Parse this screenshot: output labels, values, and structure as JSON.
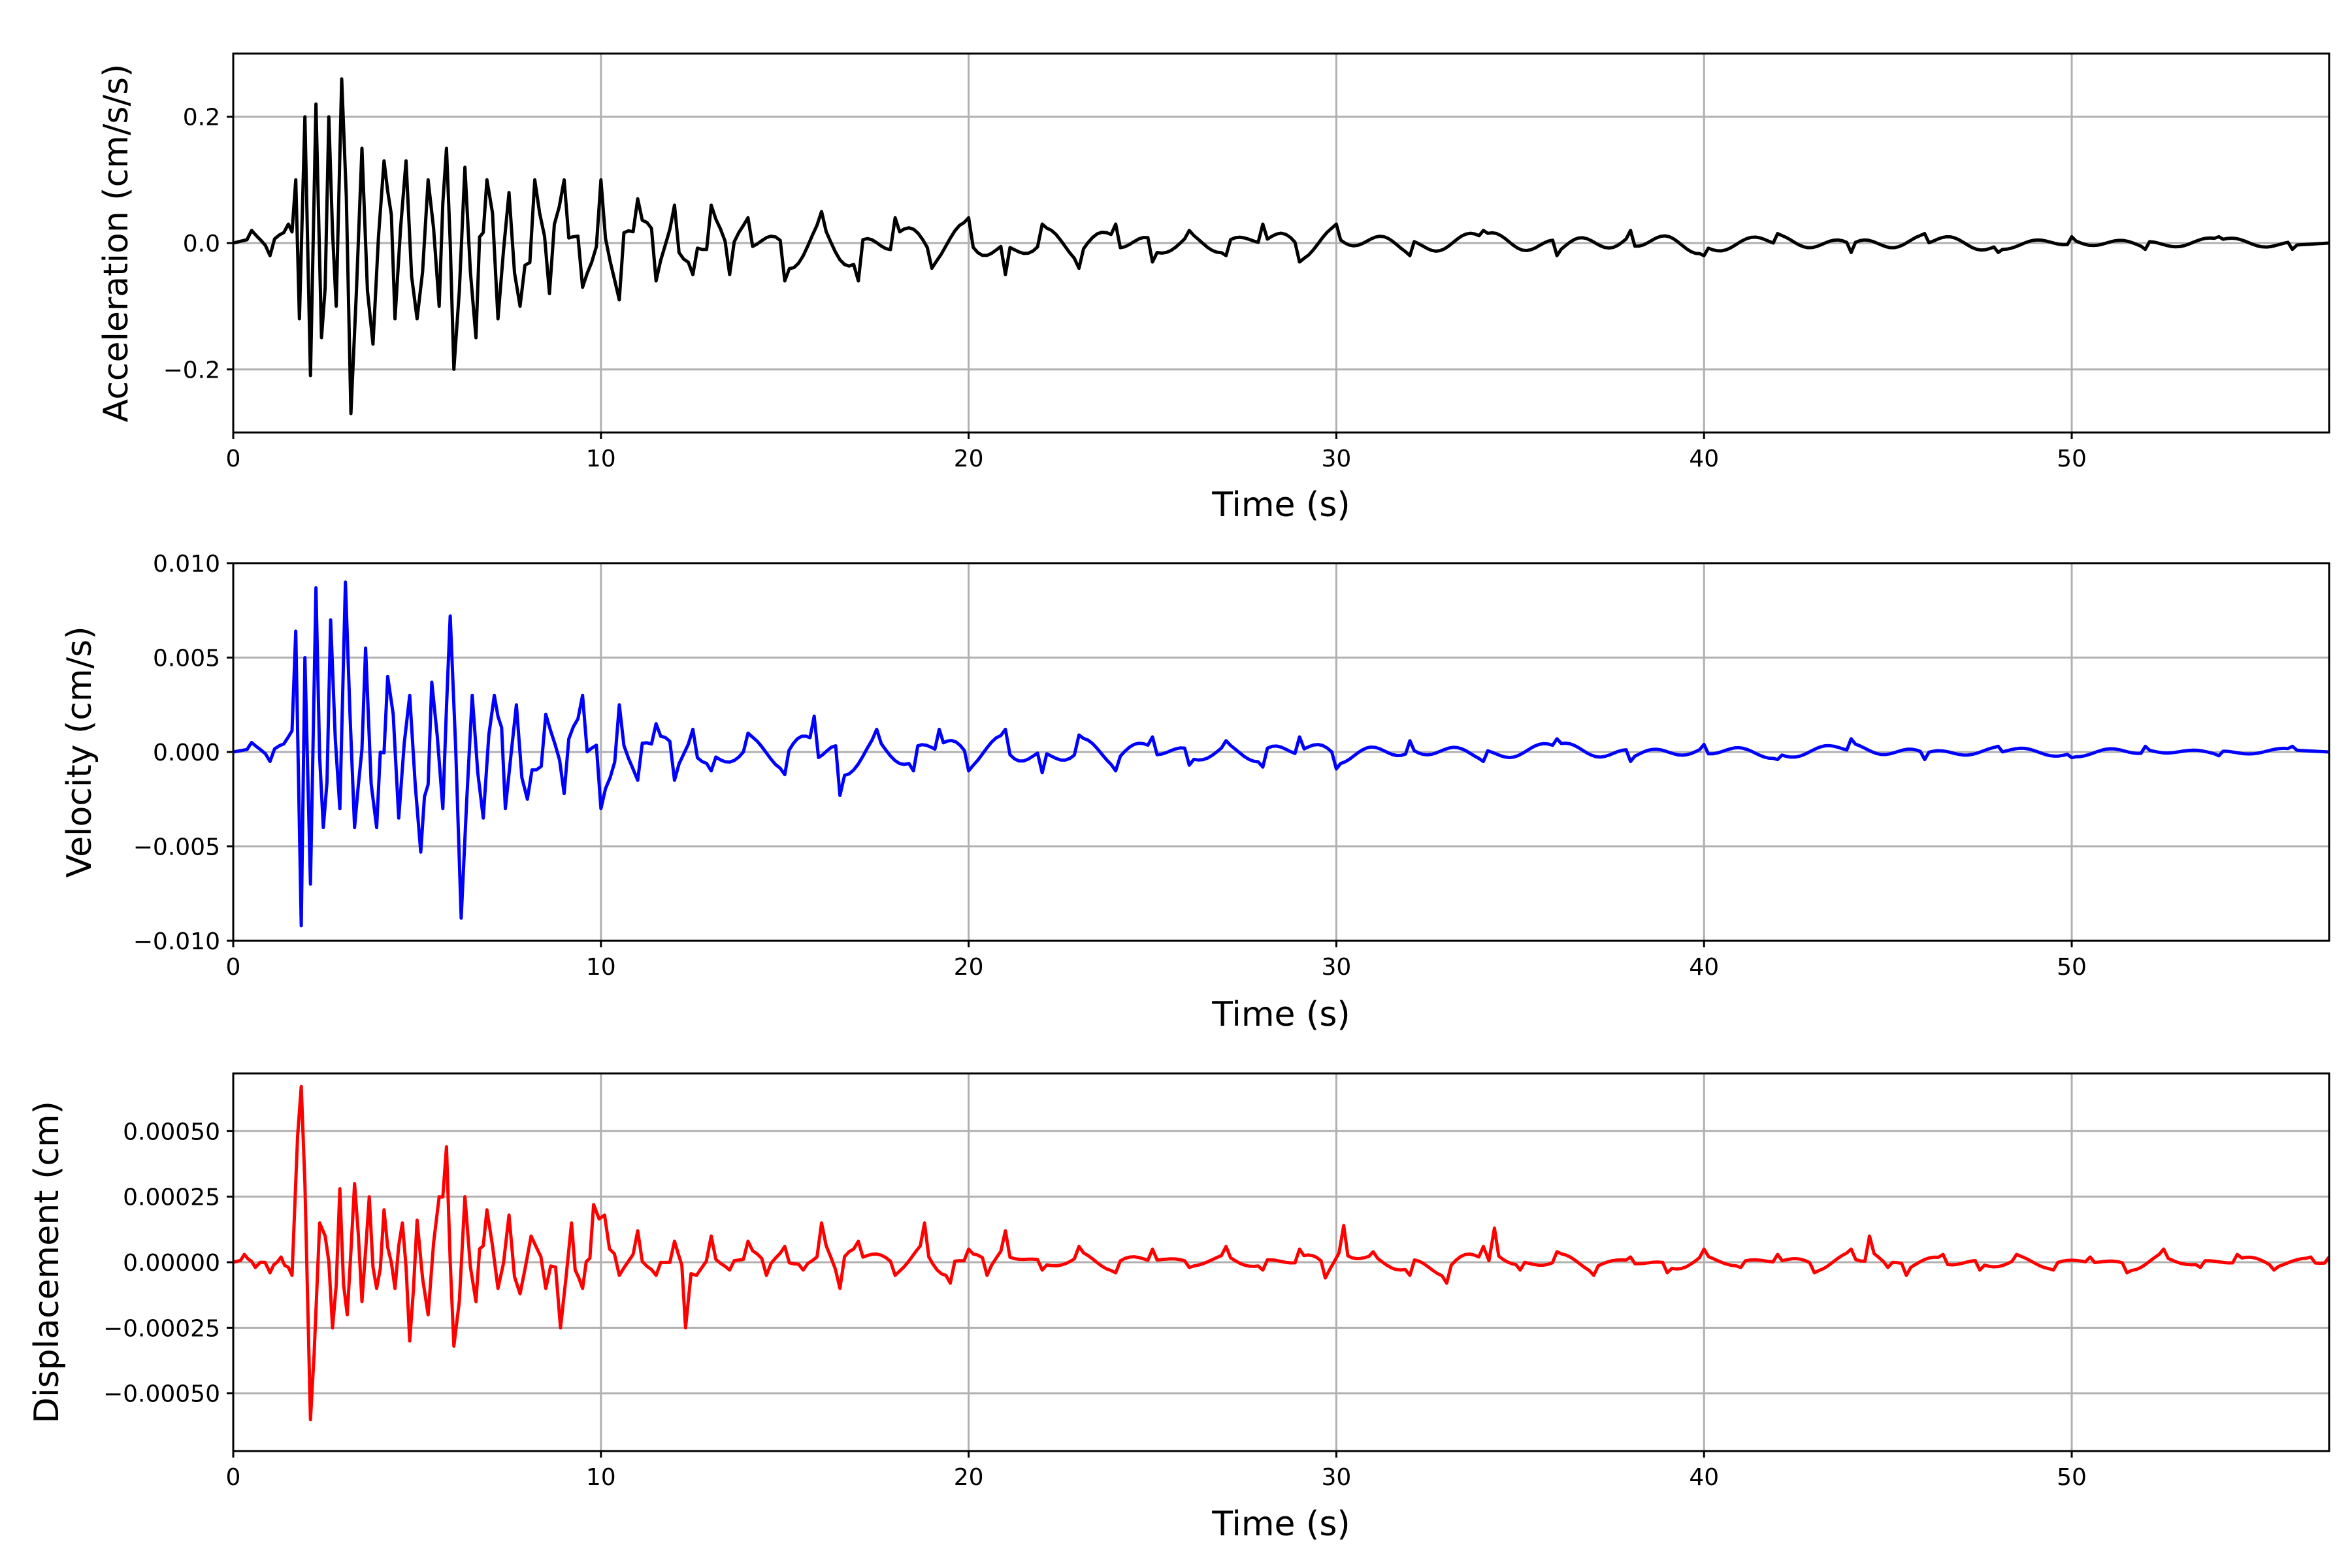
{
  "chart_data": [
    {
      "type": "line",
      "xlabel": "Time (s)",
      "ylabel": "Acceleration (cm/s/s)",
      "xlim": [
        0,
        57
      ],
      "ylim": [
        -0.3,
        0.3
      ],
      "xticks": [
        0,
        10,
        20,
        30,
        40,
        50
      ],
      "yticks": [
        -0.2,
        0.0,
        0.2
      ],
      "ytick_labels": [
        "−0.2",
        "0.0",
        "0.2"
      ],
      "grid": true,
      "color": "#000000",
      "series": [
        {
          "x": [
            0,
            0.5,
            1.0,
            1.5,
            1.7,
            1.8,
            1.95,
            2.1,
            2.25,
            2.4,
            2.6,
            2.8,
            2.95,
            3.2,
            3.5,
            3.8,
            4.1,
            4.4,
            4.7,
            5.0,
            5.3,
            5.6,
            5.8,
            6.0,
            6.3,
            6.6,
            6.9,
            7.2,
            7.5,
            7.8,
            8.2,
            8.6,
            9.0,
            9.5,
            10.0,
            10.5,
            11.0,
            11.5,
            12.0,
            12.5,
            13.0,
            13.5,
            14.0,
            15.0,
            16.0,
            17.0,
            18.0,
            19.0,
            20.0,
            21.0,
            22.0,
            23.0,
            24.0,
            25.0,
            26.0,
            27.0,
            28.0,
            29.0,
            30.0,
            32.0,
            34.0,
            36.0,
            38.0,
            40.0,
            42.0,
            44.0,
            46.0,
            48.0,
            50.0,
            52.0,
            54.0,
            56.0,
            57.0
          ],
          "y": [
            0.0,
            0.02,
            -0.02,
            0.03,
            0.1,
            -0.12,
            0.2,
            -0.21,
            0.22,
            -0.15,
            0.2,
            -0.1,
            0.26,
            -0.27,
            0.15,
            -0.16,
            0.13,
            -0.12,
            0.13,
            -0.12,
            0.1,
            -0.1,
            0.15,
            -0.2,
            0.12,
            -0.15,
            0.1,
            -0.12,
            0.08,
            -0.1,
            0.1,
            -0.08,
            0.1,
            -0.07,
            0.1,
            -0.09,
            0.07,
            -0.06,
            0.06,
            -0.05,
            0.06,
            -0.05,
            0.04,
            -0.06,
            0.05,
            -0.06,
            0.04,
            -0.04,
            0.04,
            -0.05,
            0.03,
            -0.04,
            0.03,
            -0.03,
            0.02,
            -0.02,
            0.03,
            -0.03,
            0.03,
            -0.02,
            0.02,
            -0.02,
            0.02,
            -0.02,
            0.015,
            -0.015,
            0.015,
            -0.015,
            0.01,
            -0.01,
            0.01,
            -0.01,
            0.0
          ]
        }
      ]
    },
    {
      "type": "line",
      "xlabel": "Time (s)",
      "ylabel": "Velocity (cm/s)",
      "xlim": [
        0,
        57
      ],
      "ylim": [
        -0.01,
        0.01
      ],
      "xticks": [
        0,
        10,
        20,
        30,
        40,
        50
      ],
      "yticks": [
        -0.01,
        -0.005,
        0.0,
        0.005,
        0.01
      ],
      "ytick_labels": [
        "−0.010",
        "−0.005",
        "0.000",
        "0.005",
        "0.010"
      ],
      "grid": true,
      "color": "#0000ff",
      "series": [
        {
          "x": [
            0,
            0.5,
            1.0,
            1.5,
            1.7,
            1.85,
            1.95,
            2.1,
            2.25,
            2.45,
            2.65,
            2.9,
            3.05,
            3.3,
            3.6,
            3.9,
            4.2,
            4.5,
            4.8,
            5.1,
            5.4,
            5.7,
            5.9,
            6.2,
            6.5,
            6.8,
            7.1,
            7.4,
            7.7,
            8.0,
            8.5,
            9.0,
            9.5,
            10.0,
            10.5,
            11.0,
            11.5,
            12.0,
            12.5,
            13.0,
            14.0,
            15.0,
            15.8,
            16.5,
            17.5,
            18.5,
            19.2,
            20.0,
            21.0,
            22.0,
            23.0,
            24.0,
            25.0,
            26.0,
            27.0,
            28.0,
            29.0,
            30.0,
            32.0,
            34.0,
            36.0,
            38.0,
            40.0,
            42.0,
            44.0,
            46.0,
            48.0,
            50.0,
            52.0,
            54.0,
            56.0,
            57.0
          ],
          "y": [
            0.0,
            0.0005,
            -0.0005,
            0.0008,
            0.0064,
            -0.0092,
            0.005,
            -0.007,
            0.0087,
            -0.004,
            0.007,
            -0.003,
            0.009,
            -0.004,
            0.0055,
            -0.004,
            0.004,
            -0.0035,
            0.003,
            -0.0053,
            0.0037,
            -0.003,
            0.0072,
            -0.0088,
            0.003,
            -0.0035,
            0.003,
            -0.003,
            0.0025,
            -0.0025,
            0.002,
            -0.0022,
            0.003,
            -0.003,
            0.0025,
            -0.0015,
            0.0015,
            -0.0015,
            0.0012,
            -0.001,
            0.001,
            -0.0012,
            0.0019,
            -0.0023,
            0.0012,
            -0.001,
            0.0012,
            -0.001,
            0.0012,
            -0.0011,
            0.0009,
            -0.001,
            0.0008,
            -0.0007,
            0.0006,
            -0.0008,
            0.0008,
            -0.0009,
            0.0006,
            -0.0005,
            0.0007,
            -0.0005,
            0.0004,
            -0.0004,
            0.0007,
            -0.0004,
            0.0003,
            -0.0003,
            0.0003,
            -0.0002,
            0.0003,
            0.0
          ]
        }
      ]
    },
    {
      "type": "line",
      "xlabel": "Time (s)",
      "ylabel": "Displacement (cm)",
      "xlim": [
        0,
        57
      ],
      "ylim": [
        -0.00072,
        0.00072
      ],
      "xticks": [
        0,
        10,
        20,
        30,
        40,
        50
      ],
      "yticks": [
        -0.0005,
        -0.00025,
        0.0,
        0.00025,
        0.0005
      ],
      "ytick_labels": [
        "−0.00050",
        "−0.00025",
        "0.00000",
        "0.00025",
        "0.00050"
      ],
      "grid": true,
      "color": "#ff0000",
      "series": [
        {
          "x": [
            0,
            0.3,
            0.6,
            1.0,
            1.3,
            1.6,
            1.75,
            1.85,
            1.95,
            2.1,
            2.2,
            2.35,
            2.5,
            2.7,
            2.9,
            3.1,
            3.3,
            3.5,
            3.7,
            3.9,
            4.1,
            4.4,
            4.6,
            4.8,
            5.0,
            5.3,
            5.6,
            5.8,
            6.0,
            6.3,
            6.6,
            6.9,
            7.2,
            7.5,
            7.8,
            8.1,
            8.5,
            8.9,
            9.2,
            9.5,
            9.8,
            10.1,
            10.5,
            11.0,
            11.5,
            12.0,
            12.3,
            12.6,
            13.0,
            13.5,
            14.0,
            14.5,
            15.0,
            15.5,
            16.0,
            16.5,
            17.0,
            18.0,
            18.8,
            19.5,
            20.0,
            20.5,
            21.0,
            22.0,
            23.0,
            24.0,
            25.0,
            26.0,
            27.0,
            28.0,
            29.0,
            29.7,
            30.2,
            31.0,
            32.0,
            33.0,
            34.0,
            34.3,
            35.0,
            36.0,
            37.0,
            38.0,
            39.0,
            40.0,
            41.0,
            42.0,
            43.0,
            44.0,
            44.5,
            45.0,
            45.5,
            46.5,
            47.5,
            48.5,
            49.5,
            50.5,
            51.5,
            52.5,
            53.5,
            54.5,
            55.5,
            56.5,
            57.0
          ],
          "y": [
            0.0,
            3e-05,
            -2e-05,
            -4e-05,
            2e-05,
            -5e-05,
            0.00048,
            0.00067,
            0.0003,
            -0.0006,
            -0.00035,
            0.00015,
            0.0001,
            -0.00025,
            0.00028,
            -0.0002,
            0.0003,
            -0.00015,
            0.00025,
            -0.0001,
            0.0002,
            -0.0001,
            0.00015,
            -0.0003,
            0.00016,
            -0.0002,
            0.00025,
            0.00044,
            -0.00032,
            0.00025,
            -0.00015,
            0.0002,
            -0.0001,
            0.00018,
            -0.00012,
            0.0001,
            -0.0001,
            -0.00025,
            0.00015,
            -0.0001,
            0.00022,
            0.00018,
            -5e-05,
            0.00012,
            -5e-05,
            8e-05,
            -0.00025,
            -5e-05,
            0.0001,
            -3e-05,
            8e-05,
            -5e-05,
            6e-05,
            -3e-05,
            0.00015,
            -0.0001,
            8e-05,
            -5e-05,
            0.00015,
            -8e-05,
            5e-05,
            -5e-05,
            0.00012,
            -3e-05,
            6e-05,
            -4e-05,
            5e-05,
            -2e-05,
            6e-05,
            -3e-05,
            5e-05,
            -6e-05,
            0.00014,
            4e-05,
            -5e-05,
            -8e-05,
            6e-05,
            0.00013,
            -3e-05,
            4e-05,
            -5e-05,
            2e-05,
            -4e-05,
            5e-05,
            -2e-05,
            3e-05,
            -4e-05,
            5e-05,
            0.0001,
            -2e-05,
            -5e-05,
            3e-05,
            -3e-05,
            3e-05,
            -3e-05,
            2e-05,
            -4e-05,
            5e-05,
            -2e-05,
            3e-05,
            -3e-05,
            2e-05,
            2e-05
          ]
        }
      ]
    }
  ]
}
